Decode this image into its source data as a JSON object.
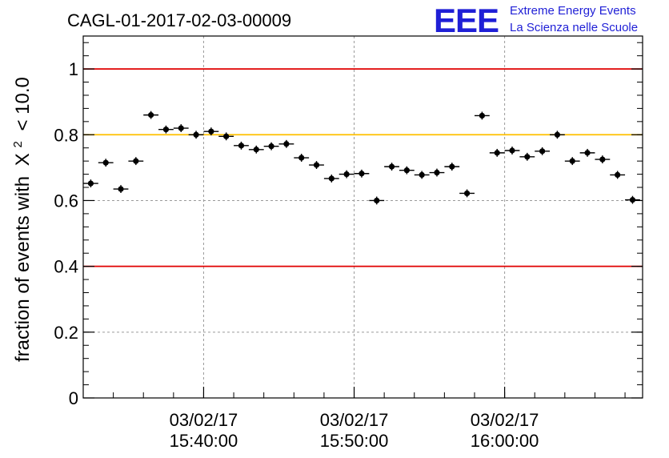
{
  "title": "CAGL-01-2017-02-03-00009",
  "logo": {
    "letters": "EEE",
    "line1": "Extreme Energy Events",
    "line2": "La Scienza nelle Scuole",
    "color": "#1f1fd6"
  },
  "chart_data": {
    "type": "scatter",
    "title": "CAGL-01-2017-02-03-00009",
    "ylabel_prefix": "fraction of events with",
    "ylabel_symbol": "X",
    "ylabel_sup": "2",
    "ylabel_suffix": "< 10.0",
    "ylim": [
      0,
      1.1
    ],
    "yticks": [
      "0",
      "0.2",
      "0.4",
      "0.6",
      "0.8",
      "1"
    ],
    "ytick_values": [
      0,
      0.2,
      0.4,
      0.6,
      0.8,
      1.0
    ],
    "xlim": [
      "03/02/17 15:32:00",
      "03/02/17 16:09:10"
    ],
    "xticks": [
      {
        "date": "03/02/17",
        "time": "15:40:00"
      },
      {
        "date": "03/02/17",
        "time": "15:50:00"
      },
      {
        "date": "03/02/17",
        "time": "16:00:00"
      }
    ],
    "grid": true,
    "reference_lines": [
      {
        "y": 1.0,
        "color": "#e00000"
      },
      {
        "y": 0.8,
        "color": "#ffc000"
      },
      {
        "y": 0.4,
        "color": "#e00000"
      }
    ],
    "x": [
      "15:32:30",
      "15:33:30",
      "15:34:30",
      "15:35:30",
      "15:36:30",
      "15:37:30",
      "15:38:30",
      "15:39:30",
      "15:40:30",
      "15:41:30",
      "15:42:30",
      "15:43:30",
      "15:44:30",
      "15:45:30",
      "15:46:30",
      "15:47:30",
      "15:48:30",
      "15:49:30",
      "15:50:30",
      "15:51:30",
      "15:52:30",
      "15:53:30",
      "15:54:30",
      "15:55:30",
      "15:56:30",
      "15:57:30",
      "15:58:30",
      "15:59:30",
      "16:00:30",
      "16:01:30",
      "16:02:30",
      "16:03:30",
      "16:04:30",
      "16:05:30",
      "16:06:30",
      "16:07:30",
      "16:08:30"
    ],
    "values": [
      0.652,
      0.715,
      0.635,
      0.72,
      0.86,
      0.816,
      0.82,
      0.8,
      0.81,
      0.795,
      0.767,
      0.755,
      0.765,
      0.772,
      0.73,
      0.708,
      0.667,
      0.68,
      0.682,
      0.6,
      0.703,
      0.692,
      0.678,
      0.685,
      0.703,
      0.622,
      0.858,
      0.745,
      0.752,
      0.733,
      0.75,
      0.8,
      0.72,
      0.745,
      0.725,
      0.678,
      0.602
    ],
    "yerr": 0.012
  }
}
